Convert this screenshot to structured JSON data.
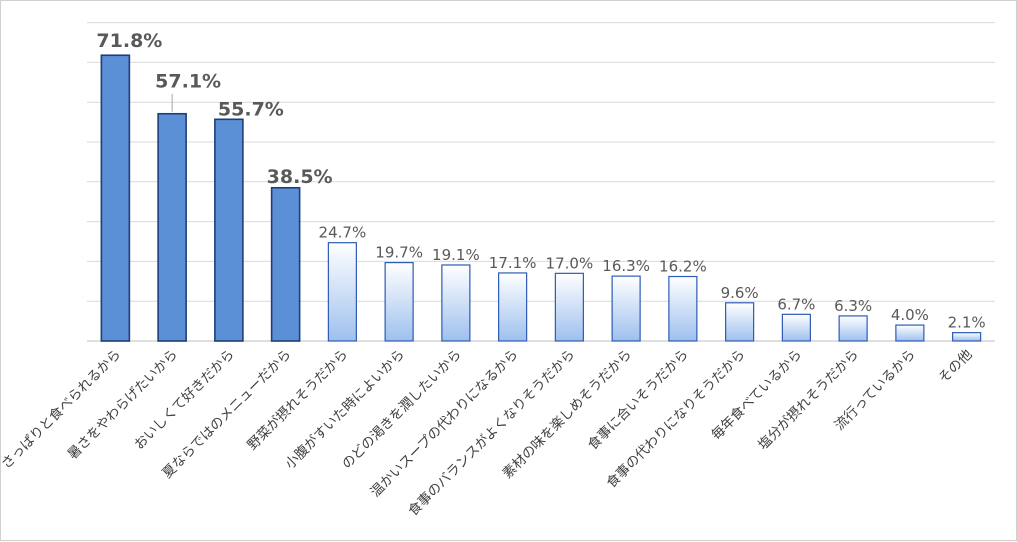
{
  "colors": {
    "highlight_fill": "#5B8FD6",
    "highlight_stroke": "#1F3E78",
    "normal_fill_top": "#FFFFFF",
    "normal_fill_bottom": "#9EC0EE",
    "normal_stroke": "#2E5BB5",
    "grid": "#d9d9d9",
    "axis": "#bfbfbf",
    "label_dark": "#595959",
    "label_normal": "#595959"
  },
  "chart_data": {
    "type": "bar",
    "title": "",
    "xlabel": "",
    "ylabel": "",
    "ylim": [
      0,
      80
    ],
    "grid": true,
    "legend": "none",
    "highlight_count": 4,
    "categories": [
      "さっぱりと食べられるから",
      "暑さをやわらげたいから",
      "おいしくて好きだから",
      "夏ならではのメニューだから",
      "野菜が摂れそうだから",
      "小腹がすいた時によいから",
      "のどの渇きを潤したいから",
      "温かいスープの代わりになるから",
      "食事のバランスがよくなりそうだから",
      "素材の味を楽しめそうだから",
      "食事に合いそうだから",
      "食事の代わりになりそうだから",
      "毎年食べているから",
      "塩分が摂れそうだから",
      "流行っているから",
      "その他"
    ],
    "values": [
      71.8,
      57.1,
      55.7,
      38.5,
      24.7,
      19.7,
      19.1,
      17.1,
      17.0,
      16.3,
      16.2,
      9.6,
      6.7,
      6.3,
      4.0,
      2.1
    ],
    "value_labels": [
      "71.8%",
      "57.1%",
      "55.7%",
      "38.5%",
      "24.7%",
      "19.7%",
      "19.1%",
      "17.1%",
      "17.0%",
      "16.3%",
      "16.2%",
      "9.6%",
      "6.7%",
      "6.3%",
      "4.0%",
      "2.1%"
    ]
  }
}
